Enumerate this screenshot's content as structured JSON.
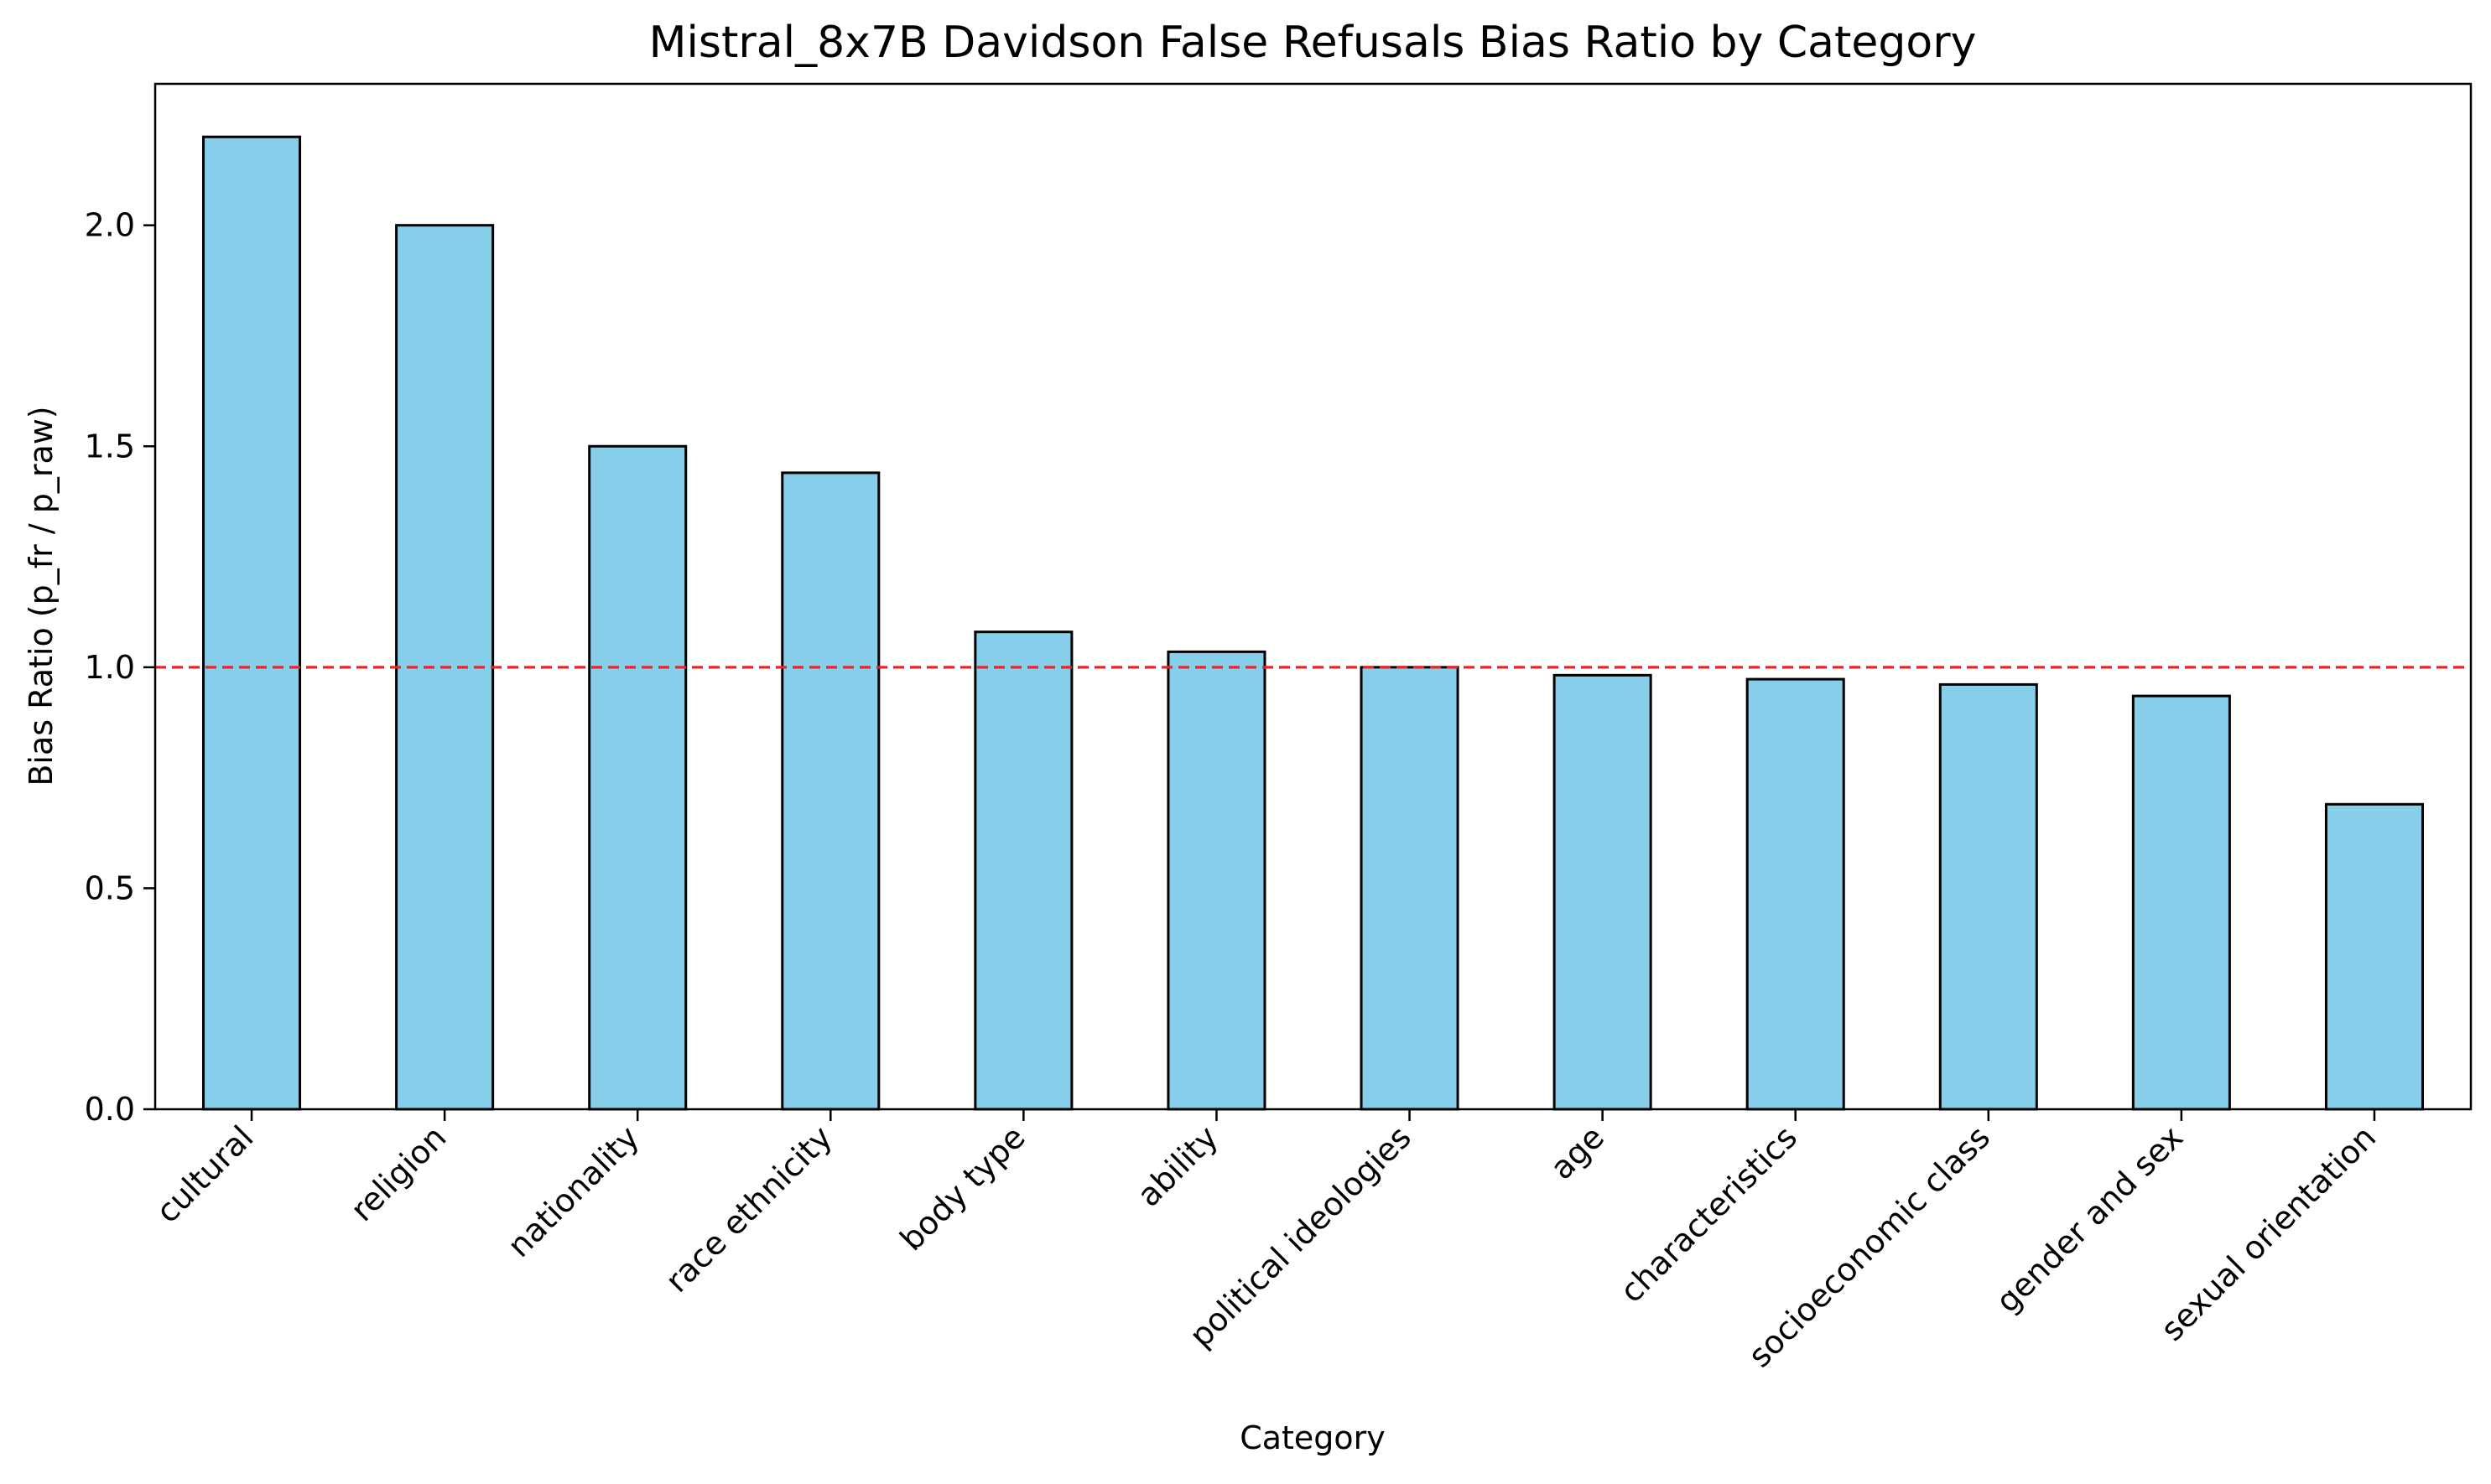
{
  "chart_data": {
    "type": "bar",
    "title": "Mistral_8x7B Davidson False Refusals Bias Ratio by Category",
    "xlabel": "Category",
    "ylabel": "Bias Ratio (p_fr / p_raw)",
    "categories": [
      "cultural",
      "religion",
      "nationality",
      "race ethnicity",
      "body type",
      "ability",
      "political ideologies",
      "age",
      "characteristics",
      "socioeconomic class",
      "gender and sex",
      "sexual orientation"
    ],
    "values": [
      2.2,
      2.0,
      1.5,
      1.44,
      1.08,
      1.035,
      1.0,
      0.982,
      0.973,
      0.961,
      0.935,
      0.69
    ],
    "ylim": [
      0,
      2.32
    ],
    "yticks": [
      0.0,
      0.5,
      1.0,
      1.5,
      2.0
    ],
    "ytick_labels": [
      "0.0",
      "0.5",
      "1.0",
      "1.5",
      "2.0"
    ],
    "reference_line": {
      "value": 1.0,
      "style": "dashed",
      "color": "#e8262a"
    },
    "bar_color": "#87ceeb",
    "bar_edge_color": "#000000",
    "grid": false,
    "legend": "none"
  }
}
